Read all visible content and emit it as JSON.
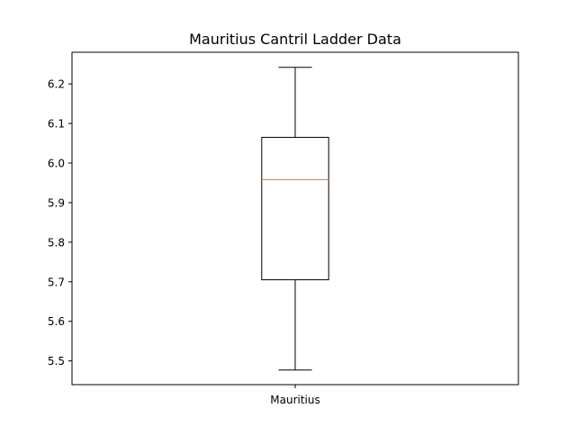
{
  "chart_data": {
    "type": "box",
    "title": "Mauritius Cantril Ladder Data",
    "xlabel": "",
    "ylabel": "",
    "categories": [
      "Mauritius"
    ],
    "boxes": [
      {
        "label": "Mauritius",
        "whisker_low": 5.477,
        "q1": 5.705,
        "median": 5.958,
        "q3": 6.065,
        "whisker_high": 6.242
      }
    ],
    "ylim": [
      5.44,
      6.28
    ],
    "yticks": [
      5.5,
      5.6,
      5.7,
      5.8,
      5.9,
      6.0,
      6.1,
      6.2
    ],
    "ytick_labels": [
      "5.5",
      "5.6",
      "5.7",
      "5.8",
      "5.9",
      "6.0",
      "6.1",
      "6.2"
    ],
    "grid": false,
    "colors": {
      "box": "#000000",
      "median": "#ff7f0e",
      "whisker": "#000000"
    }
  }
}
